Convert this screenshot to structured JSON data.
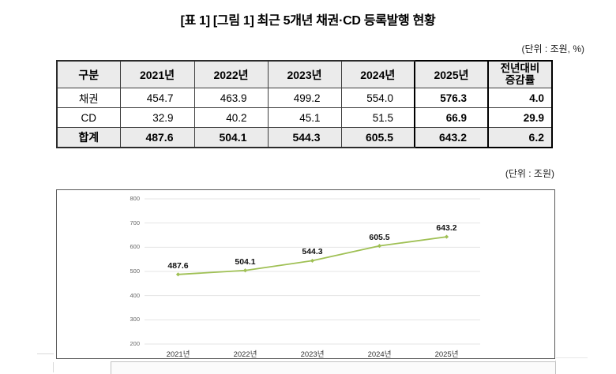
{
  "title": "[표 1] [그림 1] 최근 5개년 채권·CD 등록발행 현황",
  "unit_table": "(단위 : 조원, %)",
  "unit_chart": "(단위 : 조원)",
  "table": {
    "headers": [
      "구분",
      "2021년",
      "2022년",
      "2023년",
      "2024년",
      "2025년",
      "전년대비\n증감률"
    ],
    "rows": [
      {
        "label": "채권",
        "values": [
          "454.7",
          "463.9",
          "499.2",
          "554.0",
          "576.3",
          "4.0"
        ]
      },
      {
        "label": "CD",
        "values": [
          "32.9",
          "40.2",
          "45.1",
          "51.5",
          "66.9",
          "29.9"
        ]
      },
      {
        "label": "합계",
        "values": [
          "487.6",
          "504.1",
          "544.3",
          "605.5",
          "643.2",
          "6.2"
        ]
      }
    ]
  },
  "chart_data": {
    "type": "line",
    "title": "",
    "xlabel": "",
    "ylabel": "",
    "categories": [
      "2021년",
      "2022년",
      "2023년",
      "2024년",
      "2025년"
    ],
    "series": [
      {
        "name": "합계",
        "values": [
          487.6,
          504.1,
          544.3,
          605.5,
          643.2
        ]
      }
    ],
    "data_labels": [
      "487.6",
      "504.1",
      "544.3",
      "605.5",
      "643.2"
    ],
    "ylim": [
      200,
      800
    ],
    "yticks": [
      200,
      300,
      400,
      500,
      600,
      700,
      800
    ],
    "grid": true,
    "legend": "none",
    "line_color": "#9fc054",
    "gridline_color": "#e4e4e4"
  }
}
